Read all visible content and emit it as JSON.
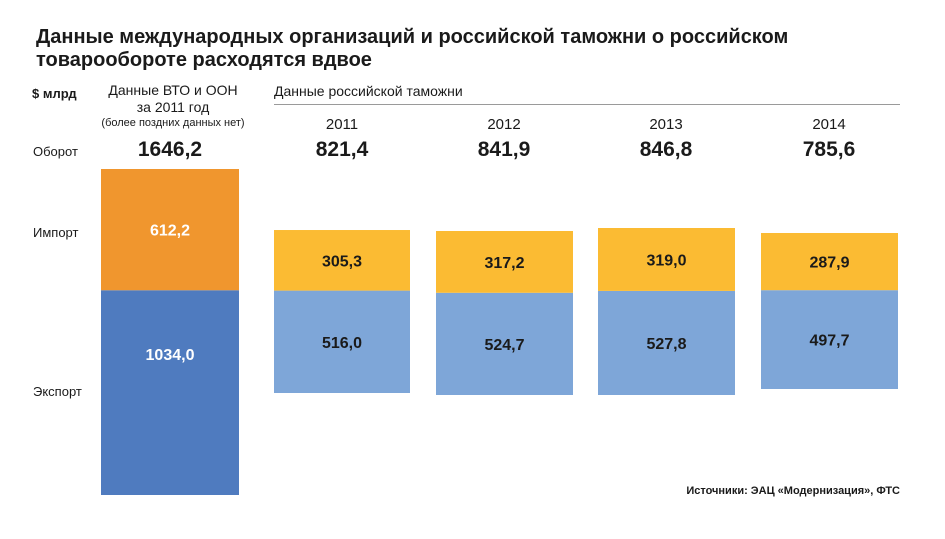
{
  "title": "Данные международных организаций и российской таможни о российском товарообороте расходятся вдвое",
  "unit": "$ млрд",
  "wto_header": {
    "line1": "Данные ВТО и ООН",
    "line2": "за 2011 год",
    "note": "(более поздних данных нет)"
  },
  "russia_header": "Данные российской таможни",
  "row_labels": {
    "turnover": "Оборот",
    "import": "Импорт",
    "export": "Экспорт"
  },
  "source": "Источники: ЭАЦ «Модернизация», ФТС",
  "colors": {
    "wto_import": "#f0962e",
    "wto_export": "#4f7bbf",
    "ru_import": "#fbbb33",
    "ru_export": "#7ea6d8"
  },
  "chart_data": {
    "type": "bar",
    "stacked": true,
    "title": "Данные международных организаций и российской таможни о российском товарообороте расходятся вдвое",
    "ylabel": "$ млрд",
    "categories": [
      "Данные ВТО и ООН за 2011 год",
      "2011",
      "2012",
      "2013",
      "2014"
    ],
    "series": [
      {
        "name": "Импорт",
        "values": [
          612.2,
          305.3,
          317.2,
          319.0,
          287.9
        ],
        "labels": [
          "612,2",
          "305,3",
          "317,2",
          "319,0",
          "287,9"
        ]
      },
      {
        "name": "Экспорт",
        "values": [
          1034.0,
          516.0,
          524.7,
          527.8,
          497.7
        ],
        "labels": [
          "1034,0",
          "516,0",
          "524,7",
          "527,8",
          "497,7"
        ]
      }
    ],
    "totals": [
      1646.2,
      821.4,
      841.9,
      846.8,
      785.6
    ],
    "total_labels": [
      "1646,2",
      "821,4",
      "841,9",
      "846,8",
      "785,6"
    ],
    "year_labels": [
      "2011",
      "2012",
      "2013",
      "2014"
    ]
  }
}
